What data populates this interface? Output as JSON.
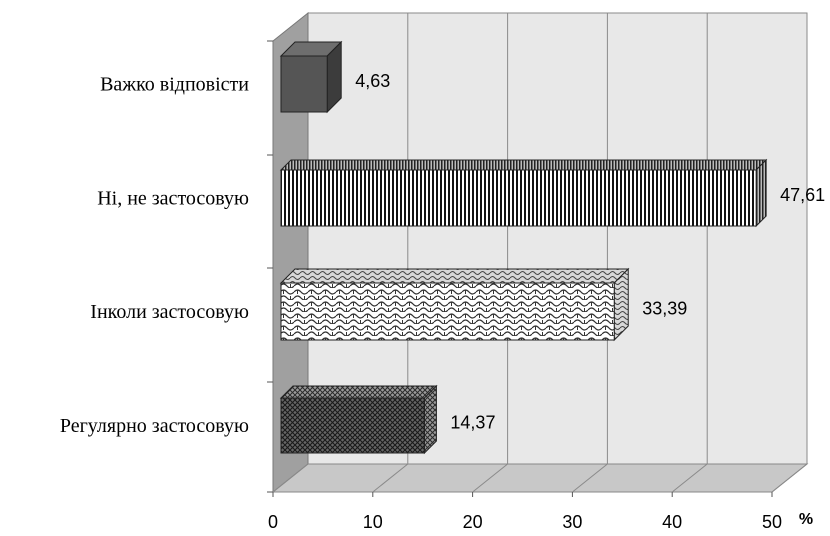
{
  "chart_data": {
    "type": "bar",
    "orientation": "horizontal",
    "style": "3d",
    "categories": [
      "Регулярно застосовую",
      "Інколи застосовую",
      "Ні, не застосовую",
      "Важко відповісти"
    ],
    "value_labels": [
      "14,37",
      "33,39",
      "47,61",
      "4,63"
    ],
    "values": [
      14.37,
      33.39,
      47.61,
      4.63
    ],
    "xticks": [
      "0",
      "10",
      "20",
      "30",
      "40",
      "50"
    ],
    "xlim": [
      0,
      50
    ],
    "xunit": "%",
    "grid": true,
    "legend": "none",
    "fills": [
      "dense-crosshatch",
      "white-wave",
      "vertical-stripes",
      "solid-dark"
    ],
    "colors": {
      "wall": "#e8e8e8",
      "side_wall": "#a0a0a0",
      "floor": "#c8c8c8",
      "grid": "#8a8a8a",
      "dark_bar": "#555555"
    }
  }
}
